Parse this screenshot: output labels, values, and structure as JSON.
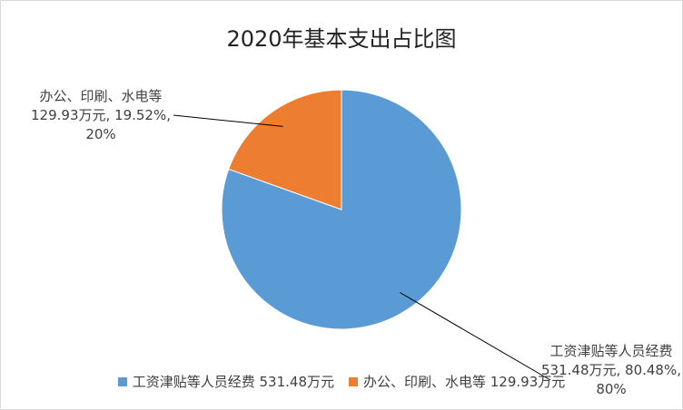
{
  "chart_data": {
    "type": "pie",
    "title": "2020年基本支出占比图",
    "categories": [
      "工资津贴等人员经费 531.48万元",
      "办公、印刷、水电等 129.93万元"
    ],
    "values": [
      80.48,
      19.52
    ],
    "value_labels": [
      "工资津贴等人员经费 531.48万元, 80.48%, 80%",
      "办公、印刷、水电等 129.93万元, 19.52%, 20%"
    ],
    "colors": [
      "#5b9bd5",
      "#ed7d31"
    ],
    "legend": "bottom"
  }
}
